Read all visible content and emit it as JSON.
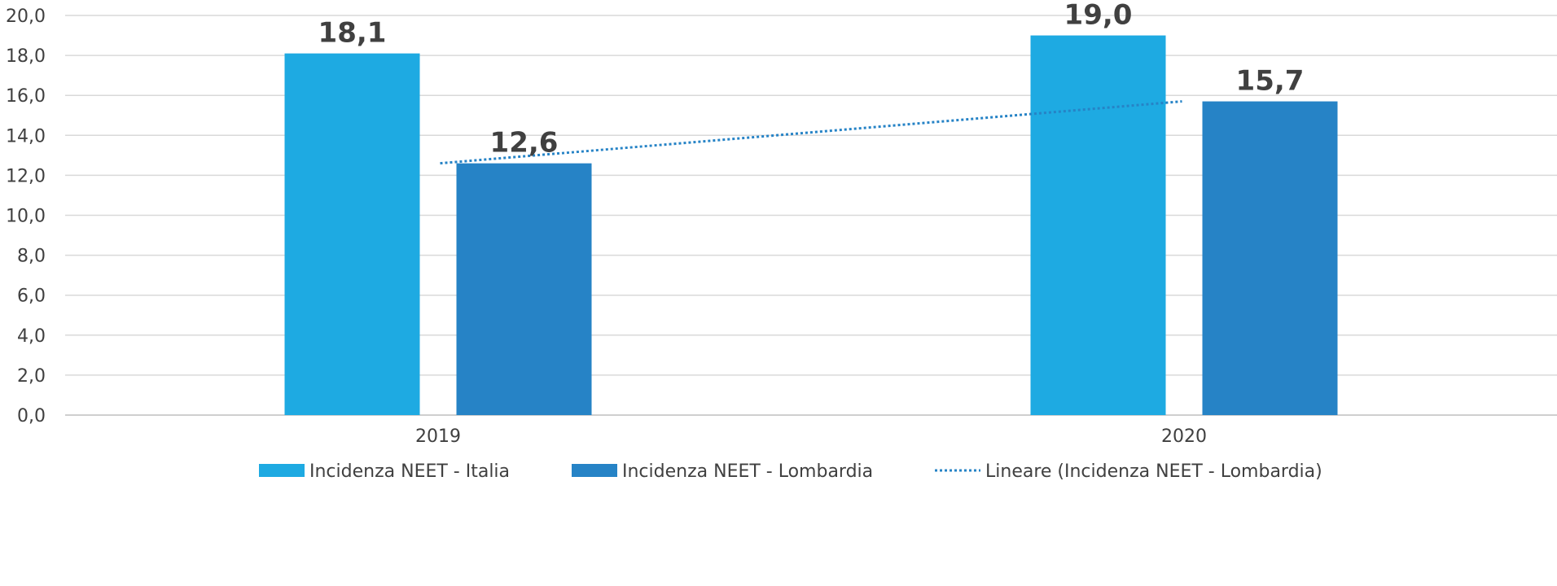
{
  "chart_data": {
    "type": "bar",
    "categories": [
      "2019",
      "2020"
    ],
    "series": [
      {
        "name": "Incidenza NEET - Italia",
        "values": [
          18.1,
          19.0
        ],
        "color": "#1eaae2"
      },
      {
        "name": "Incidenza NEET - Lombardia",
        "values": [
          12.6,
          15.7
        ],
        "color": "#2683c6"
      }
    ],
    "data_labels": [
      [
        "18,1",
        "19,0"
      ],
      [
        "12,6",
        "15,7"
      ]
    ],
    "trendline": {
      "name": "Lineare (Incidenza NEET - Lombardia)",
      "series": "Incidenza NEET - Lombardia",
      "kind": "linear",
      "values": [
        12.6,
        15.7
      ],
      "color": "#2683c6",
      "style": "dotted"
    },
    "ylim": [
      0,
      20
    ],
    "yticks": [
      0,
      2,
      4,
      6,
      8,
      10,
      12,
      14,
      16,
      18,
      20
    ],
    "ytick_labels": [
      "0,0",
      "2,0",
      "4,0",
      "6,0",
      "8,0",
      "10,0",
      "12,0",
      "14,0",
      "16,0",
      "18,0",
      "20,0"
    ],
    "grid": true,
    "legend_position": "bottom",
    "title": "",
    "xlabel": "",
    "ylabel": ""
  }
}
